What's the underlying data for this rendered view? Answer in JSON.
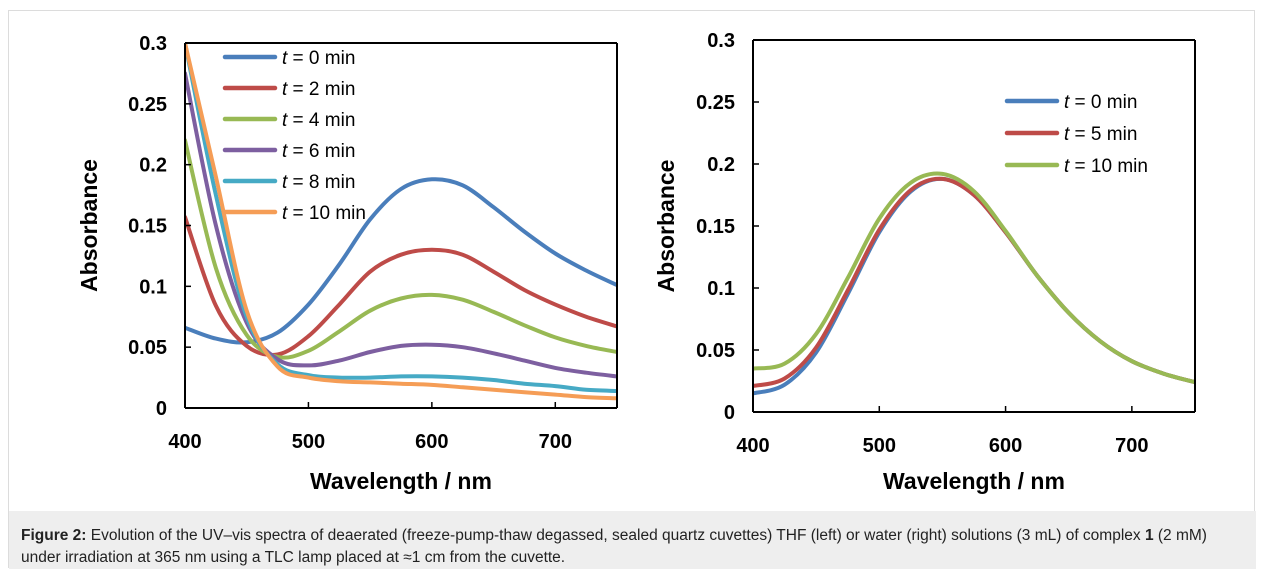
{
  "caption": {
    "label": "Figure 2:",
    "text_a": " Evolution of the UV–vis spectra of deaerated (freeze-pump-thaw degassed, sealed quartz cuvettes) THF (left) or water (right) solutions (3 mL) of complex ",
    "compound": "1",
    "text_b": " (2 mM) under irradiation at 365 nm using a TLC lamp placed at ≈1 cm from the cuvette."
  },
  "chart_data": [
    {
      "type": "line",
      "xlabel": "Wavelength  /  nm",
      "ylabel": "Absorbance",
      "xlim": [
        400,
        750
      ],
      "ylim": [
        0,
        0.3
      ],
      "xticks": [
        400,
        500,
        600,
        700
      ],
      "yticks": [
        0,
        0.05,
        0.1,
        0.15,
        0.2,
        0.25,
        0.3
      ],
      "ytick_labels": [
        "0",
        "0.05",
        "0.1",
        "0.15",
        "0.2",
        "0.25",
        "0.3"
      ],
      "grid": false,
      "legend": "top-left",
      "x": [
        400,
        425,
        450,
        475,
        500,
        525,
        550,
        575,
        600,
        625,
        650,
        675,
        700,
        725,
        750
      ],
      "series": [
        {
          "name": "t = 0 min",
          "color": "#4a7ebb",
          "values": [
            0.066,
            0.057,
            0.054,
            0.062,
            0.085,
            0.118,
            0.155,
            0.18,
            0.188,
            0.183,
            0.165,
            0.145,
            0.127,
            0.113,
            0.101
          ]
        },
        {
          "name": "t = 2 min",
          "color": "#be4b48",
          "values": [
            0.157,
            0.084,
            0.051,
            0.044,
            0.059,
            0.085,
            0.112,
            0.126,
            0.13,
            0.126,
            0.112,
            0.097,
            0.085,
            0.075,
            0.067
          ]
        },
        {
          "name": "t = 4 min",
          "color": "#98b954",
          "values": [
            0.22,
            0.115,
            0.06,
            0.042,
            0.047,
            0.063,
            0.08,
            0.09,
            0.093,
            0.089,
            0.079,
            0.068,
            0.058,
            0.051,
            0.046
          ]
        },
        {
          "name": "t = 6 min",
          "color": "#7d5fa0",
          "values": [
            0.275,
            0.15,
            0.07,
            0.04,
            0.035,
            0.039,
            0.046,
            0.051,
            0.052,
            0.05,
            0.045,
            0.039,
            0.033,
            0.029,
            0.026
          ]
        },
        {
          "name": "t = 8 min",
          "color": "#46aac5",
          "values": [
            0.3,
            0.175,
            0.075,
            0.036,
            0.027,
            0.025,
            0.025,
            0.026,
            0.026,
            0.025,
            0.023,
            0.02,
            0.018,
            0.015,
            0.014
          ]
        },
        {
          "name": "t = 10 min",
          "color": "#f59d56",
          "values": [
            0.3,
            0.19,
            0.08,
            0.034,
            0.025,
            0.022,
            0.021,
            0.02,
            0.019,
            0.017,
            0.015,
            0.013,
            0.011,
            0.009,
            0.008
          ]
        }
      ]
    },
    {
      "type": "line",
      "xlabel": "Wavelength  /  nm",
      "ylabel": "Absorbance",
      "xlim": [
        400,
        750
      ],
      "ylim": [
        0,
        0.3
      ],
      "xticks": [
        400,
        500,
        600,
        700
      ],
      "yticks": [
        0,
        0.05,
        0.1,
        0.15,
        0.2,
        0.25,
        0.3
      ],
      "ytick_labels": [
        "0",
        "0.05",
        "0.1",
        "0.15",
        "0.2",
        "0.25",
        "0.3"
      ],
      "grid": false,
      "legend": "top-right",
      "x": [
        400,
        425,
        450,
        475,
        500,
        525,
        550,
        575,
        600,
        625,
        650,
        675,
        700,
        725,
        750
      ],
      "series": [
        {
          "name": "t = 0 min",
          "color": "#4a7ebb",
          "values": [
            0.015,
            0.022,
            0.048,
            0.095,
            0.145,
            0.178,
            0.188,
            0.175,
            0.145,
            0.11,
            0.08,
            0.057,
            0.041,
            0.031,
            0.024
          ]
        },
        {
          "name": "t = 5 min",
          "color": "#be4b48",
          "values": [
            0.021,
            0.027,
            0.052,
            0.098,
            0.147,
            0.179,
            0.188,
            0.175,
            0.145,
            0.11,
            0.08,
            0.057,
            0.041,
            0.031,
            0.024
          ]
        },
        {
          "name": "t = 10 min",
          "color": "#98b954",
          "values": [
            0.035,
            0.039,
            0.063,
            0.108,
            0.156,
            0.185,
            0.192,
            0.178,
            0.146,
            0.11,
            0.08,
            0.057,
            0.041,
            0.031,
            0.024
          ]
        }
      ]
    }
  ]
}
